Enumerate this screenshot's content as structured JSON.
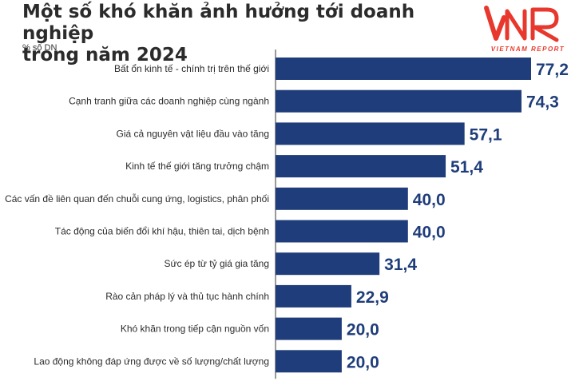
{
  "header": {
    "title_line1": "Một số khó khăn ảnh hưởng tới doanh nghiệp",
    "title_line2": "trong năm 2024",
    "unit": "% số DN"
  },
  "logo": {
    "mark": "VNR",
    "tagline": "VIETNAM REPORT",
    "color": "#e8372c"
  },
  "colors": {
    "bar": "#1f3d7a",
    "label": "#2b2b2b",
    "value": "#1f3d7a",
    "axis": "#333333"
  },
  "chart_data": {
    "type": "bar",
    "orientation": "horizontal",
    "title": "Một số khó khăn ảnh hưởng tới doanh nghiệp trong năm 2024",
    "xlabel": "",
    "ylabel": "% số DN",
    "xlim": [
      0,
      80
    ],
    "grid": false,
    "categories": [
      "Bất ổn kinh tế - chính trị trên thế giới",
      "Cạnh tranh giữa các doanh nghiệp cùng ngành",
      "Giá cả nguyên vật liệu đầu vào tăng",
      "Kinh tế thế giới tăng trưởng chậm",
      "Các vấn đề liên quan đến chuỗi cung ứng, logistics, phân phối",
      "Tác động của biến đổi khí hậu, thiên tai, dịch bệnh",
      "Sức ép từ tỷ giá gia tăng",
      "Rào cản pháp lý và thủ tục hành chính",
      "Khó khăn trong tiếp cận nguồn vốn",
      "Lao động không đáp ứng được về số lượng/chất lượng"
    ],
    "values": [
      77.2,
      74.3,
      57.1,
      51.4,
      40.0,
      40.0,
      31.4,
      22.9,
      20.0,
      20.0
    ],
    "value_labels": [
      "77,2",
      "74,3",
      "57,1",
      "51,4",
      "40,0",
      "40,0",
      "31,4",
      "22,9",
      "20,0",
      "20,0"
    ]
  }
}
